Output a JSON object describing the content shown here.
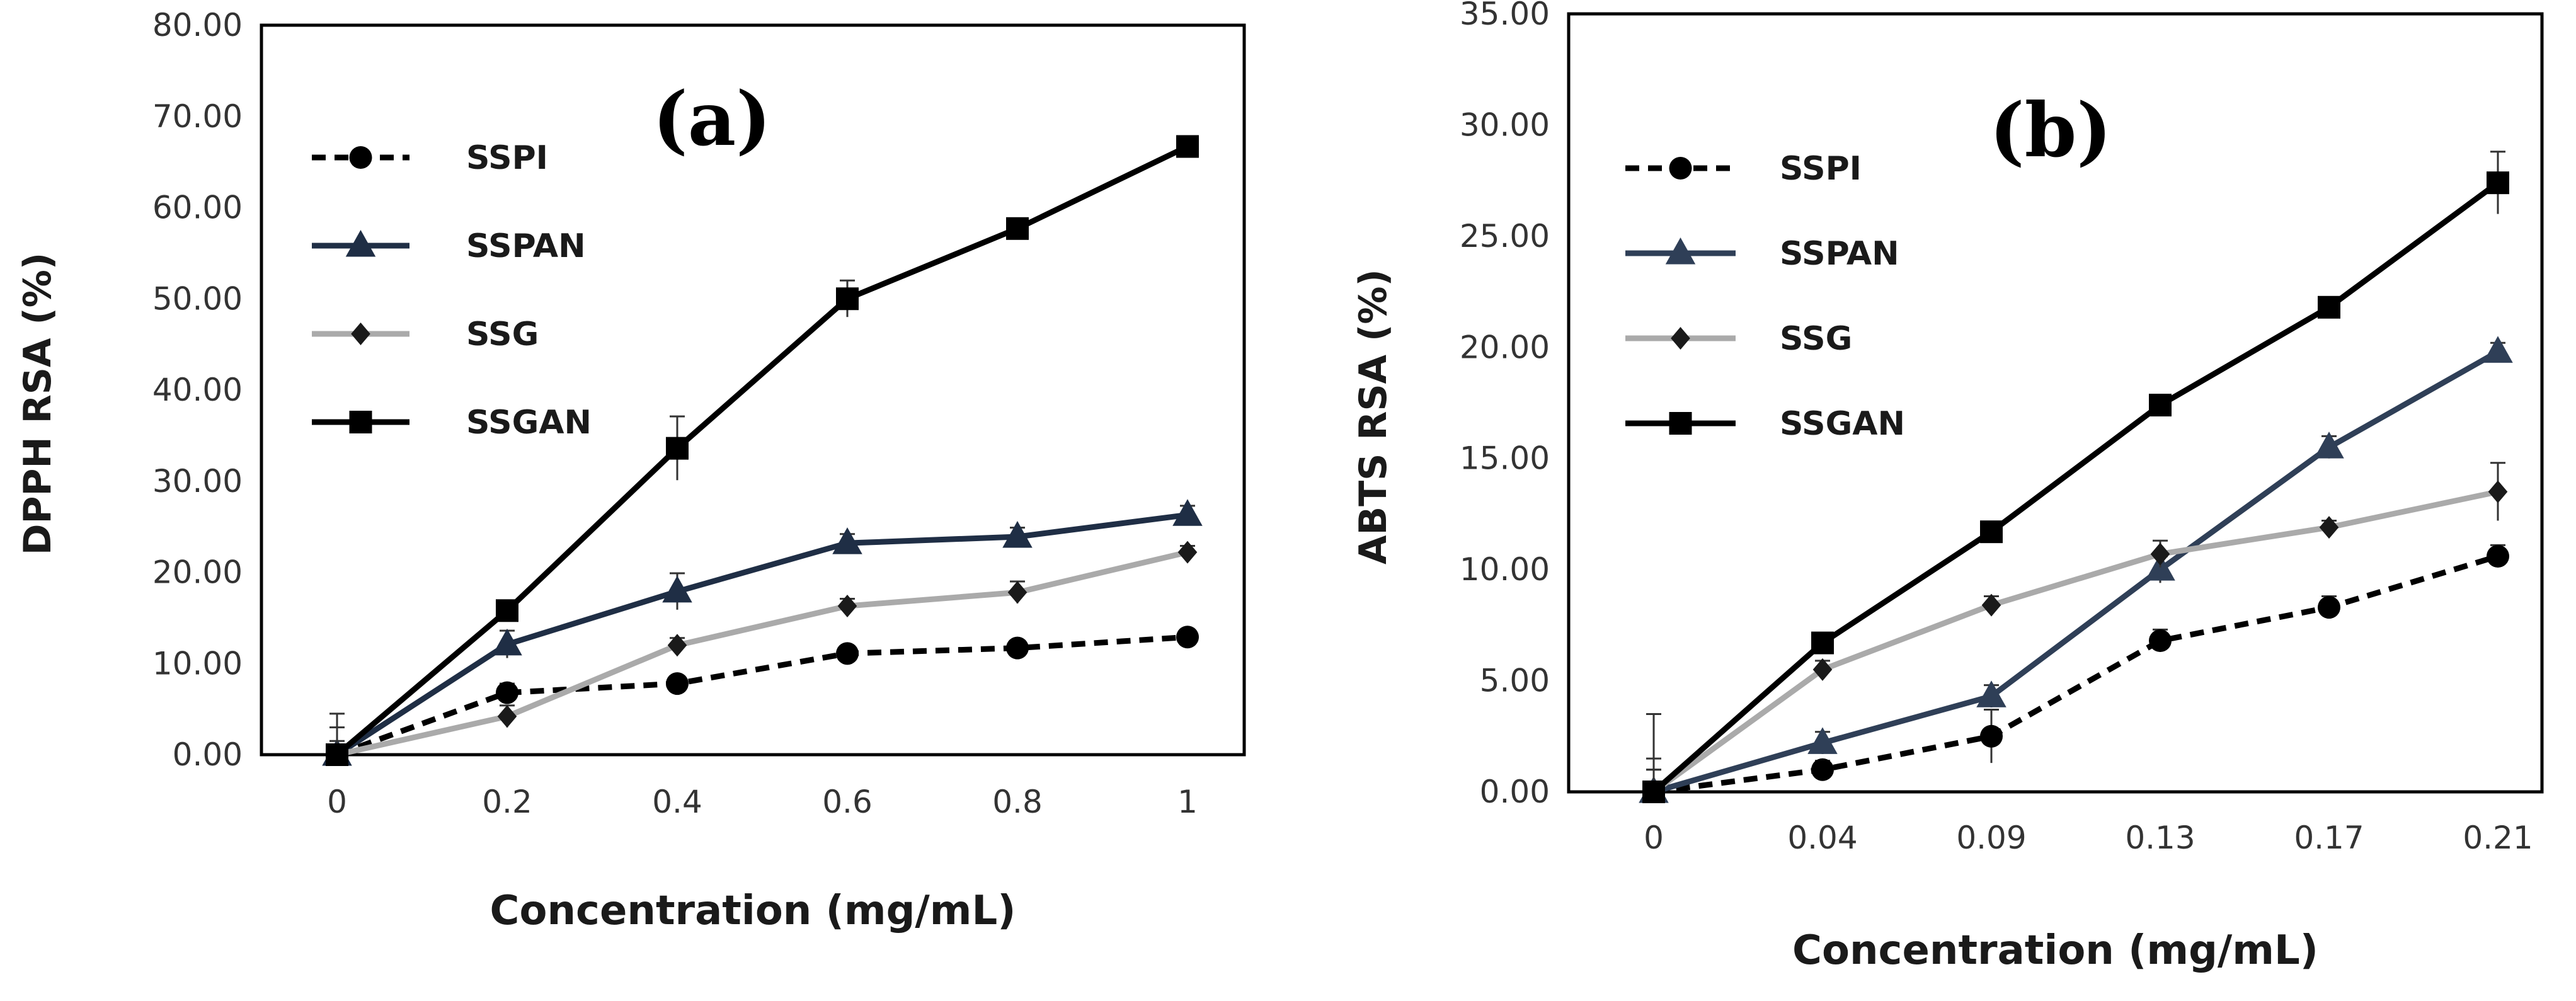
{
  "chart_data": [
    {
      "type": "line",
      "panel_label": "(a)",
      "xlabel": "Concentration (mg/mL)",
      "ylabel": "DPPH RSA (%)",
      "categories": [
        "0",
        "0.2",
        "0.4",
        "0.6",
        "0.8",
        "1"
      ],
      "yticks": [
        "0.00",
        "10.00",
        "20.00",
        "30.00",
        "40.00",
        "50.00",
        "60.00",
        "70.00",
        "80.00"
      ],
      "ylim": [
        0,
        80
      ],
      "grid": false,
      "legend_position": "top-left",
      "series": [
        {
          "name": "SSPI",
          "style": "dashed",
          "marker": "circle",
          "color": "#000000",
          "values": [
            0,
            6.8,
            7.8,
            11.1,
            11.7,
            12.9
          ],
          "errors": [
            4.5,
            1.0,
            0.8,
            0.8,
            0.8,
            0.7
          ]
        },
        {
          "name": "SSPAN",
          "style": "solid",
          "marker": "triangle",
          "color": "#1f2e45",
          "values": [
            0,
            12.1,
            17.9,
            23.2,
            23.9,
            26.3
          ],
          "errors": [
            1.5,
            1.5,
            2.0,
            1.0,
            1.0,
            1.0
          ]
        },
        {
          "name": "SSG",
          "style": "solid",
          "marker": "diamond",
          "color": "#aaaaaa",
          "values": [
            0,
            4.2,
            12.0,
            16.3,
            17.8,
            22.2
          ],
          "errors": [
            3.0,
            1.2,
            0.8,
            0.8,
            1.2,
            0.7
          ]
        },
        {
          "name": "SSGAN",
          "style": "solid",
          "marker": "square",
          "color": "#000000",
          "values": [
            0,
            15.8,
            33.6,
            50.0,
            57.7,
            66.7
          ],
          "errors": [
            1.0,
            0.8,
            3.5,
            2.0,
            0.8,
            0.6
          ]
        }
      ]
    },
    {
      "type": "line",
      "panel_label": "(b)",
      "xlabel": "Concentration (mg/mL)",
      "ylabel": "ABTS RSA (%)",
      "categories": [
        "0",
        "0.04",
        "0.09",
        "0.13",
        "0.17",
        "0.21"
      ],
      "yticks": [
        "0.00",
        "5.00",
        "10.00",
        "15.00",
        "20.00",
        "25.00",
        "30.00",
        "35.00"
      ],
      "ylim": [
        0,
        35
      ],
      "grid": false,
      "legend_position": "top-left",
      "series": [
        {
          "name": "SSPI",
          "style": "dashed",
          "marker": "circle",
          "color": "#000000",
          "values": [
            0,
            1.0,
            2.5,
            6.8,
            8.3,
            10.6
          ],
          "errors": [
            1.5,
            0.4,
            1.2,
            0.5,
            0.5,
            0.5
          ]
        },
        {
          "name": "SSPAN",
          "style": "solid",
          "marker": "triangle",
          "color": "#2f3f57",
          "values": [
            0,
            2.2,
            4.3,
            10.0,
            15.5,
            19.8
          ],
          "errors": [
            1.0,
            0.5,
            0.5,
            0.6,
            0.5,
            0.4
          ]
        },
        {
          "name": "SSG",
          "style": "solid",
          "marker": "diamond",
          "color": "#aaaaaa",
          "values": [
            0,
            5.5,
            8.4,
            10.7,
            11.9,
            13.5
          ],
          "errors": [
            1.0,
            0.4,
            0.4,
            0.6,
            0.3,
            1.3
          ]
        },
        {
          "name": "SSGAN",
          "style": "solid",
          "marker": "square",
          "color": "#000000",
          "values": [
            0,
            6.7,
            11.7,
            17.4,
            21.8,
            27.4
          ],
          "errors": [
            3.5,
            0.4,
            0.4,
            0.3,
            0.3,
            1.4
          ]
        }
      ]
    }
  ]
}
